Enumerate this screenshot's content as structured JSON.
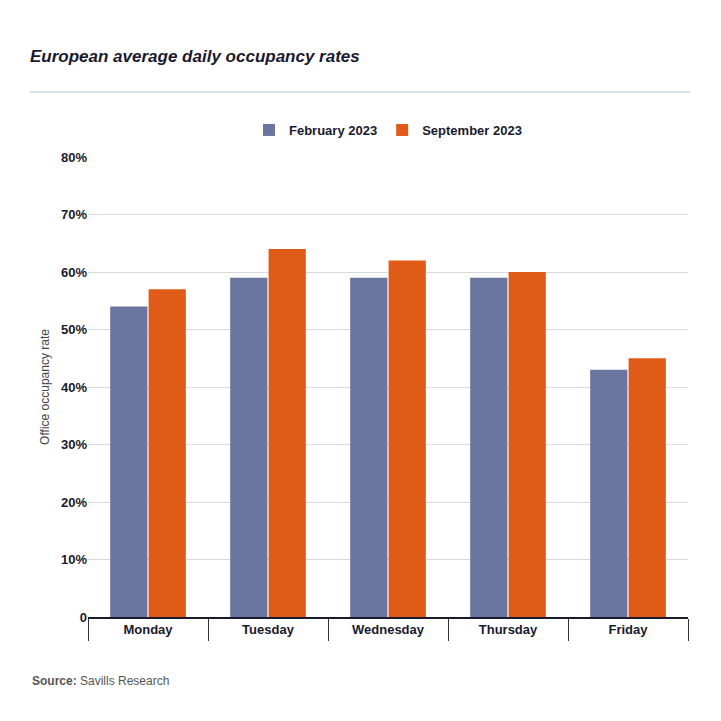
{
  "chart_data": {
    "type": "bar",
    "title": "European average daily occupancy rates",
    "y_label": "Office occupancy rate",
    "categories": [
      "Monday",
      "Tuesday",
      "Wednesday",
      "Thursday",
      "Friday"
    ],
    "series": [
      {
        "name": "February 2023",
        "color": "#6b76a0",
        "values": [
          54,
          59,
          59,
          59,
          43
        ]
      },
      {
        "name": "September 2023",
        "color": "#e05a18",
        "values": [
          57,
          64,
          62,
          60,
          45
        ]
      }
    ],
    "ylim": [
      0,
      80
    ],
    "yticks": [
      0,
      {
        "value": 10,
        "label": "10%"
      },
      {
        "value": 20,
        "label": "20%"
      },
      {
        "value": 30,
        "label": "30%"
      },
      {
        "value": 40,
        "label": "40%"
      },
      {
        "value": 50,
        "label": "50%"
      },
      {
        "value": 60,
        "label": "60%"
      },
      {
        "value": 70,
        "label": "70%"
      },
      {
        "value": 80,
        "label": "80%"
      }
    ],
    "grid": true,
    "legend": "top",
    "source_label": "Source:",
    "source": "Savills Research"
  }
}
